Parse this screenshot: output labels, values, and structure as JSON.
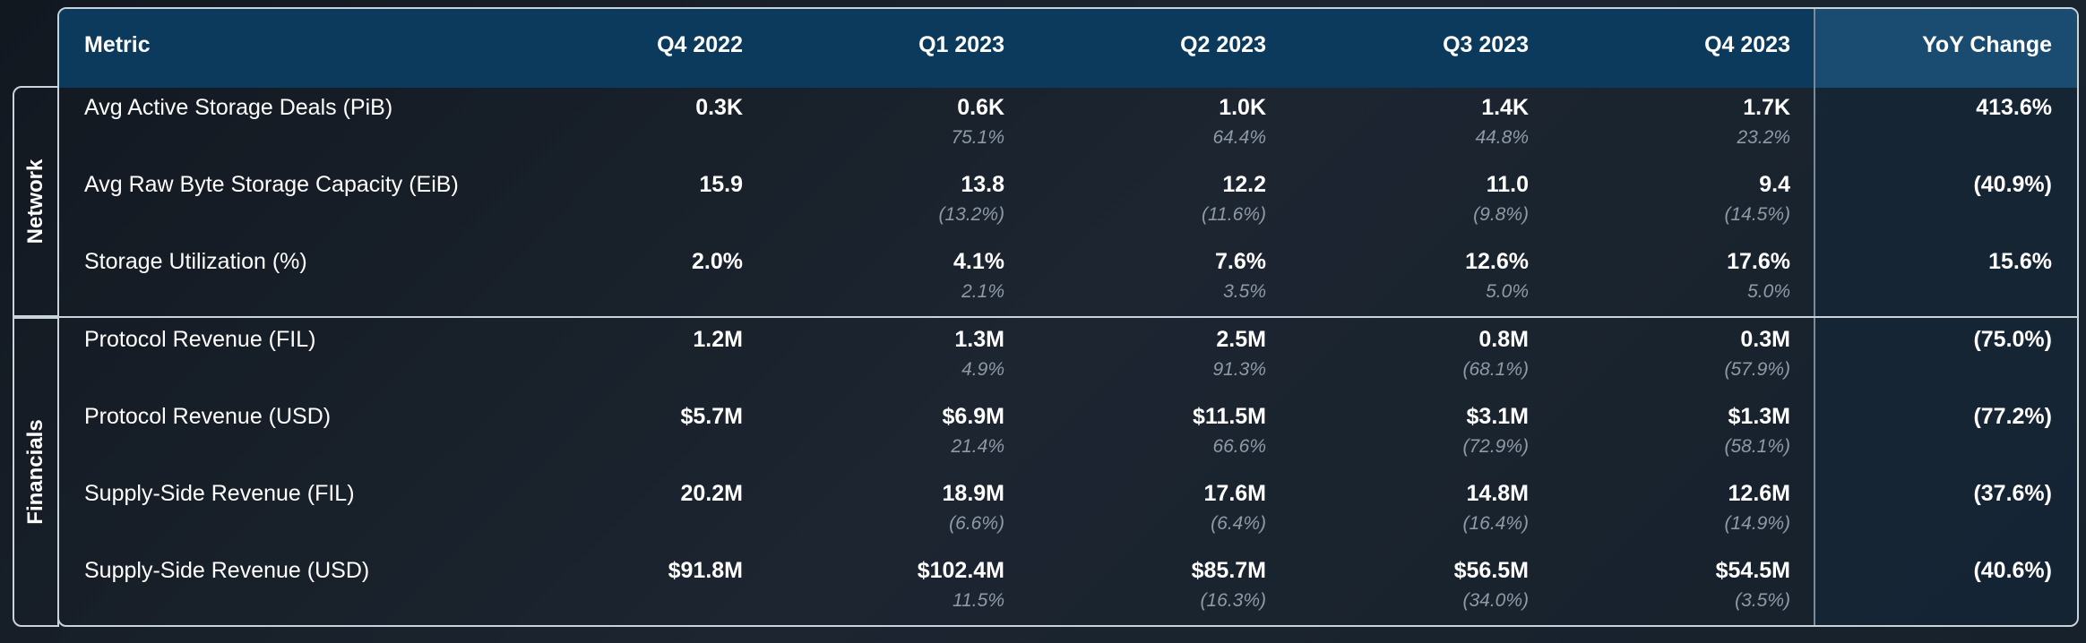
{
  "chart_data": {
    "type": "table",
    "columns": [
      "Metric",
      "Q4 2022",
      "Q1 2023",
      "Q2 2023",
      "Q3 2023",
      "Q4 2023",
      "YoY Change"
    ],
    "sections": [
      {
        "name": "Network",
        "rows": [
          {
            "metric": "Avg Active Storage Deals (PiB)",
            "values": [
              "0.3K",
              "0.6K",
              "1.0K",
              "1.4K",
              "1.7K"
            ],
            "changes": [
              "",
              "75.1%",
              "64.4%",
              "44.8%",
              "23.2%"
            ],
            "yoy": "413.6%"
          },
          {
            "metric": "Avg Raw Byte Storage Capacity (EiB)",
            "values": [
              "15.9",
              "13.8",
              "12.2",
              "11.0",
              "9.4"
            ],
            "changes": [
              "",
              "(13.2%)",
              "(11.6%)",
              "(9.8%)",
              "(14.5%)"
            ],
            "yoy": "(40.9%)"
          },
          {
            "metric": "Storage Utilization (%)",
            "values": [
              "2.0%",
              "4.1%",
              "7.6%",
              "12.6%",
              "17.6%"
            ],
            "changes": [
              "",
              "2.1%",
              "3.5%",
              "5.0%",
              "5.0%"
            ],
            "yoy": "15.6%"
          }
        ]
      },
      {
        "name": "Financials",
        "rows": [
          {
            "metric": "Protocol Revenue (FIL)",
            "values": [
              "1.2M",
              "1.3M",
              "2.5M",
              "0.8M",
              "0.3M"
            ],
            "changes": [
              "",
              "4.9%",
              "91.3%",
              "(68.1%)",
              "(57.9%)"
            ],
            "yoy": "(75.0%)"
          },
          {
            "metric": "Protocol Revenue (USD)",
            "values": [
              "$5.7M",
              "$6.9M",
              "$11.5M",
              "$3.1M",
              "$1.3M"
            ],
            "changes": [
              "",
              "21.4%",
              "66.6%",
              "(72.9%)",
              "(58.1%)"
            ],
            "yoy": "(77.2%)"
          },
          {
            "metric": "Supply-Side Revenue (FIL)",
            "values": [
              "20.2M",
              "18.9M",
              "17.6M",
              "14.8M",
              "12.6M"
            ],
            "changes": [
              "",
              "(6.6%)",
              "(6.4%)",
              "(16.4%)",
              "(14.9%)"
            ],
            "yoy": "(37.6%)"
          },
          {
            "metric": "Supply-Side Revenue (USD)",
            "values": [
              "$91.8M",
              "$102.4M",
              "$85.7M",
              "$56.5M",
              "$54.5M"
            ],
            "changes": [
              "",
              "11.5%",
              "(16.3%)",
              "(34.0%)",
              "(3.5%)"
            ],
            "yoy": "(40.6%)"
          }
        ]
      }
    ]
  },
  "colors": {
    "header_bg": "#0c3a5c",
    "yoy_header_bg": "#1a4c72",
    "border": "#c9d3dc",
    "change_text": "#8e9aa6"
  }
}
